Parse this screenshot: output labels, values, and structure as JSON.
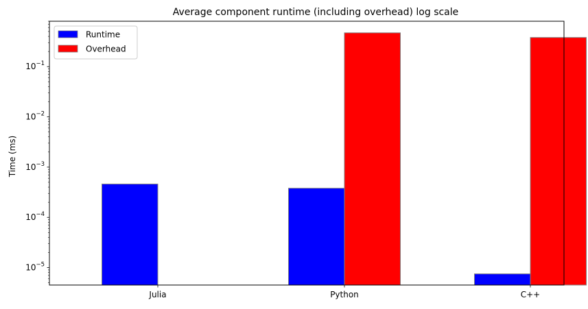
{
  "chart_data": {
    "type": "bar",
    "title": "Average component runtime (including overhead) log scale",
    "xlabel": "",
    "ylabel": "Time (ms)",
    "yscale": "log",
    "ylim": [
      4.5e-06,
      0.8
    ],
    "categories": [
      "Julia",
      "Python",
      "C++"
    ],
    "series": [
      {
        "name": "Runtime",
        "color": "#0000ff",
        "values": [
          0.00046,
          0.00038,
          7.5e-06
        ]
      },
      {
        "name": "Overhead",
        "color": "#ff0000",
        "values": [
          null,
          0.47,
          0.38
        ]
      }
    ],
    "ytick_labels": [
      {
        "value": 1e-05,
        "base": "10",
        "exp": "−5"
      },
      {
        "value": 0.0001,
        "base": "10",
        "exp": "−4"
      },
      {
        "value": 0.001,
        "base": "10",
        "exp": "−3"
      },
      {
        "value": 0.01,
        "base": "10",
        "exp": "−2"
      },
      {
        "value": 0.1,
        "base": "10",
        "exp": "−1"
      }
    ],
    "legend_position": "top-left",
    "grid": false,
    "bar_edge_color": "#808080"
  }
}
